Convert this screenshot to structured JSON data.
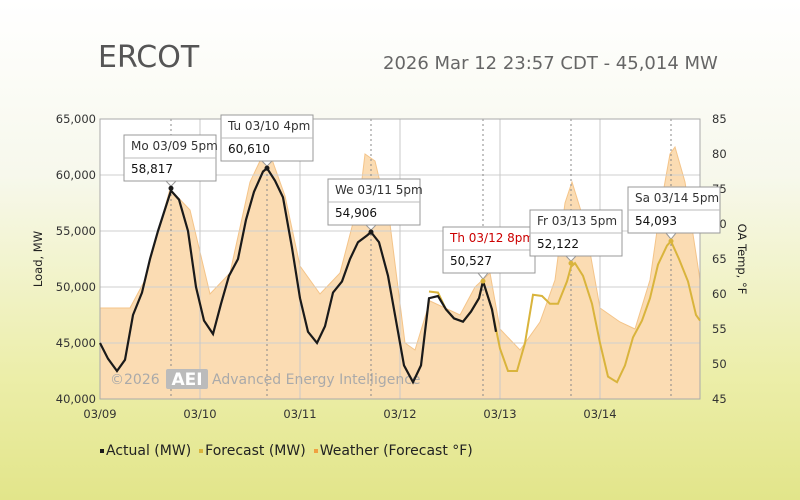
{
  "header": {
    "title": "ERCOT",
    "subtitle": "2026 Mar 12 23:57 CDT - 45,014 MW"
  },
  "watermark": {
    "year": "©2026",
    "logo": "AEI",
    "company": "Advanced Energy Intelligence"
  },
  "colors": {
    "actual": "#1a1a1a",
    "forecast": "#d9b43c",
    "weather_fill": "#fbdcb3",
    "weather_line": "#f4c489",
    "label_red": "#cc0000"
  },
  "chart_data": {
    "type": "line",
    "xlabel": "",
    "ylabel": "Load, MW",
    "y2label": "OA Temp, °F",
    "ylim": [
      40000,
      65000
    ],
    "y2lim": [
      45,
      85
    ],
    "xlim": [
      0,
      6
    ],
    "x_unit": "days from 03/09 00:00",
    "x_ticks": [
      0,
      1,
      2,
      3,
      4,
      5
    ],
    "x_tick_labels": [
      "03/09",
      "03/10",
      "03/11",
      "03/12",
      "03/13",
      "03/14"
    ],
    "y_ticks": [
      40000,
      45000,
      50000,
      55000,
      60000,
      65000
    ],
    "y_tick_labels": [
      "40,000",
      "45,000",
      "50,000",
      "55,000",
      "60,000",
      "65,000"
    ],
    "y2_ticks": [
      45,
      50,
      55,
      60,
      65,
      70,
      75,
      80,
      85
    ],
    "grid": true,
    "legend_position": "bottom",
    "series": [
      {
        "name": "Actual (MW)",
        "color": "#1a1a1a",
        "points": [
          [
            0,
            45000
          ],
          [
            0.08,
            43600
          ],
          [
            0.17,
            42500
          ],
          [
            0.25,
            43500
          ],
          [
            0.33,
            47500
          ],
          [
            0.42,
            49500
          ],
          [
            0.5,
            52500
          ],
          [
            0.58,
            55000
          ],
          [
            0.67,
            57500
          ],
          [
            0.71,
            58600
          ],
          [
            0.79,
            57800
          ],
          [
            0.88,
            55000
          ],
          [
            0.96,
            50000
          ],
          [
            1.04,
            47000
          ],
          [
            1.13,
            45800
          ],
          [
            1.21,
            48500
          ],
          [
            1.29,
            51000
          ],
          [
            1.38,
            52500
          ],
          [
            1.46,
            56000
          ],
          [
            1.54,
            58500
          ],
          [
            1.63,
            60300
          ],
          [
            1.67,
            60610
          ],
          [
            1.75,
            59500
          ],
          [
            1.83,
            58000
          ],
          [
            1.92,
            53500
          ],
          [
            2.0,
            49000
          ],
          [
            2.08,
            46000
          ],
          [
            2.17,
            45000
          ],
          [
            2.25,
            46500
          ],
          [
            2.33,
            49500
          ],
          [
            2.42,
            50500
          ],
          [
            2.5,
            52500
          ],
          [
            2.58,
            54000
          ],
          [
            2.67,
            54600
          ],
          [
            2.71,
            54906
          ],
          [
            2.79,
            54000
          ],
          [
            2.88,
            51000
          ],
          [
            2.96,
            47000
          ],
          [
            3.04,
            43000
          ],
          [
            3.13,
            41500
          ],
          [
            3.21,
            43000
          ],
          [
            3.29,
            49000
          ],
          [
            3.38,
            49200
          ],
          [
            3.46,
            48000
          ],
          [
            3.54,
            47200
          ],
          [
            3.63,
            46900
          ],
          [
            3.71,
            47800
          ],
          [
            3.79,
            49000
          ],
          [
            3.83,
            50527
          ],
          [
            3.92,
            48000
          ],
          [
            3.96,
            46000
          ]
        ]
      },
      {
        "name": "Forecast (MW)",
        "color": "#d9b43c",
        "points": [
          [
            3.29,
            49600
          ],
          [
            3.38,
            49500
          ],
          [
            3.46,
            48000
          ],
          [
            3.54,
            47200
          ],
          [
            3.63,
            46900
          ],
          [
            3.71,
            47800
          ],
          [
            3.79,
            49000
          ],
          [
            3.83,
            50527
          ],
          [
            3.92,
            48000
          ],
          [
            4.0,
            44500
          ],
          [
            4.08,
            42500
          ],
          [
            4.17,
            42500
          ],
          [
            4.25,
            45000
          ],
          [
            4.33,
            49300
          ],
          [
            4.42,
            49200
          ],
          [
            4.5,
            48500
          ],
          [
            4.58,
            48500
          ],
          [
            4.67,
            50500
          ],
          [
            4.71,
            51800
          ],
          [
            4.75,
            52122
          ],
          [
            4.83,
            51000
          ],
          [
            4.92,
            48500
          ],
          [
            5.0,
            45000
          ],
          [
            5.08,
            42000
          ],
          [
            5.17,
            41500
          ],
          [
            5.25,
            43000
          ],
          [
            5.33,
            45500
          ],
          [
            5.42,
            47000
          ],
          [
            5.5,
            49000
          ],
          [
            5.58,
            52000
          ],
          [
            5.67,
            53700
          ],
          [
            5.71,
            54093
          ],
          [
            5.79,
            52500
          ],
          [
            5.88,
            50500
          ],
          [
            5.96,
            47500
          ],
          [
            6.0,
            47000
          ]
        ]
      },
      {
        "name": "Weather (Forecast °F)",
        "color": "#f4c489",
        "points": [
          [
            0,
            58
          ],
          [
            0.3,
            58
          ],
          [
            0.45,
            62
          ],
          [
            0.7,
            75
          ],
          [
            0.9,
            72
          ],
          [
            1.1,
            60
          ],
          [
            1.3,
            63
          ],
          [
            1.5,
            76
          ],
          [
            1.6,
            79
          ],
          [
            1.7,
            80
          ],
          [
            1.85,
            74
          ],
          [
            2.0,
            64
          ],
          [
            2.1,
            62
          ],
          [
            2.2,
            60
          ],
          [
            2.4,
            63
          ],
          [
            2.6,
            74
          ],
          [
            2.65,
            80
          ],
          [
            2.75,
            79
          ],
          [
            2.9,
            70
          ],
          [
            3.05,
            53
          ],
          [
            3.15,
            52
          ],
          [
            3.3,
            59
          ],
          [
            3.45,
            58
          ],
          [
            3.6,
            57
          ],
          [
            3.75,
            61
          ],
          [
            3.9,
            63
          ],
          [
            4.0,
            55
          ],
          [
            4.2,
            52
          ],
          [
            4.4,
            56
          ],
          [
            4.55,
            62
          ],
          [
            4.65,
            73
          ],
          [
            4.72,
            76
          ],
          [
            4.85,
            70
          ],
          [
            5.0,
            58
          ],
          [
            5.2,
            56
          ],
          [
            5.35,
            55
          ],
          [
            5.5,
            62
          ],
          [
            5.6,
            72
          ],
          [
            5.7,
            80
          ],
          [
            5.75,
            81
          ],
          [
            5.85,
            76
          ],
          [
            6.0,
            62
          ]
        ]
      }
    ],
    "annotations": [
      {
        "day": "Mo 03/09 5pm",
        "value": "58,817",
        "x": 0.71,
        "y": 58817,
        "red": false
      },
      {
        "day": "Tu 03/10 4pm",
        "value": "60,610",
        "x": 1.67,
        "y": 60610,
        "red": false
      },
      {
        "day": "We 03/11 5pm",
        "value": "54,906",
        "x": 2.71,
        "y": 54906,
        "red": false
      },
      {
        "day": "Th 03/12 8pm",
        "value": "50,527",
        "x": 3.83,
        "y": 50527,
        "red": true
      },
      {
        "day": "Fr 03/13 5pm",
        "value": "52,122",
        "x": 4.71,
        "y": 52122,
        "red": false
      },
      {
        "day": "Sa 03/14 5pm",
        "value": "54,093",
        "x": 5.71,
        "y": 54093,
        "red": false
      }
    ]
  }
}
